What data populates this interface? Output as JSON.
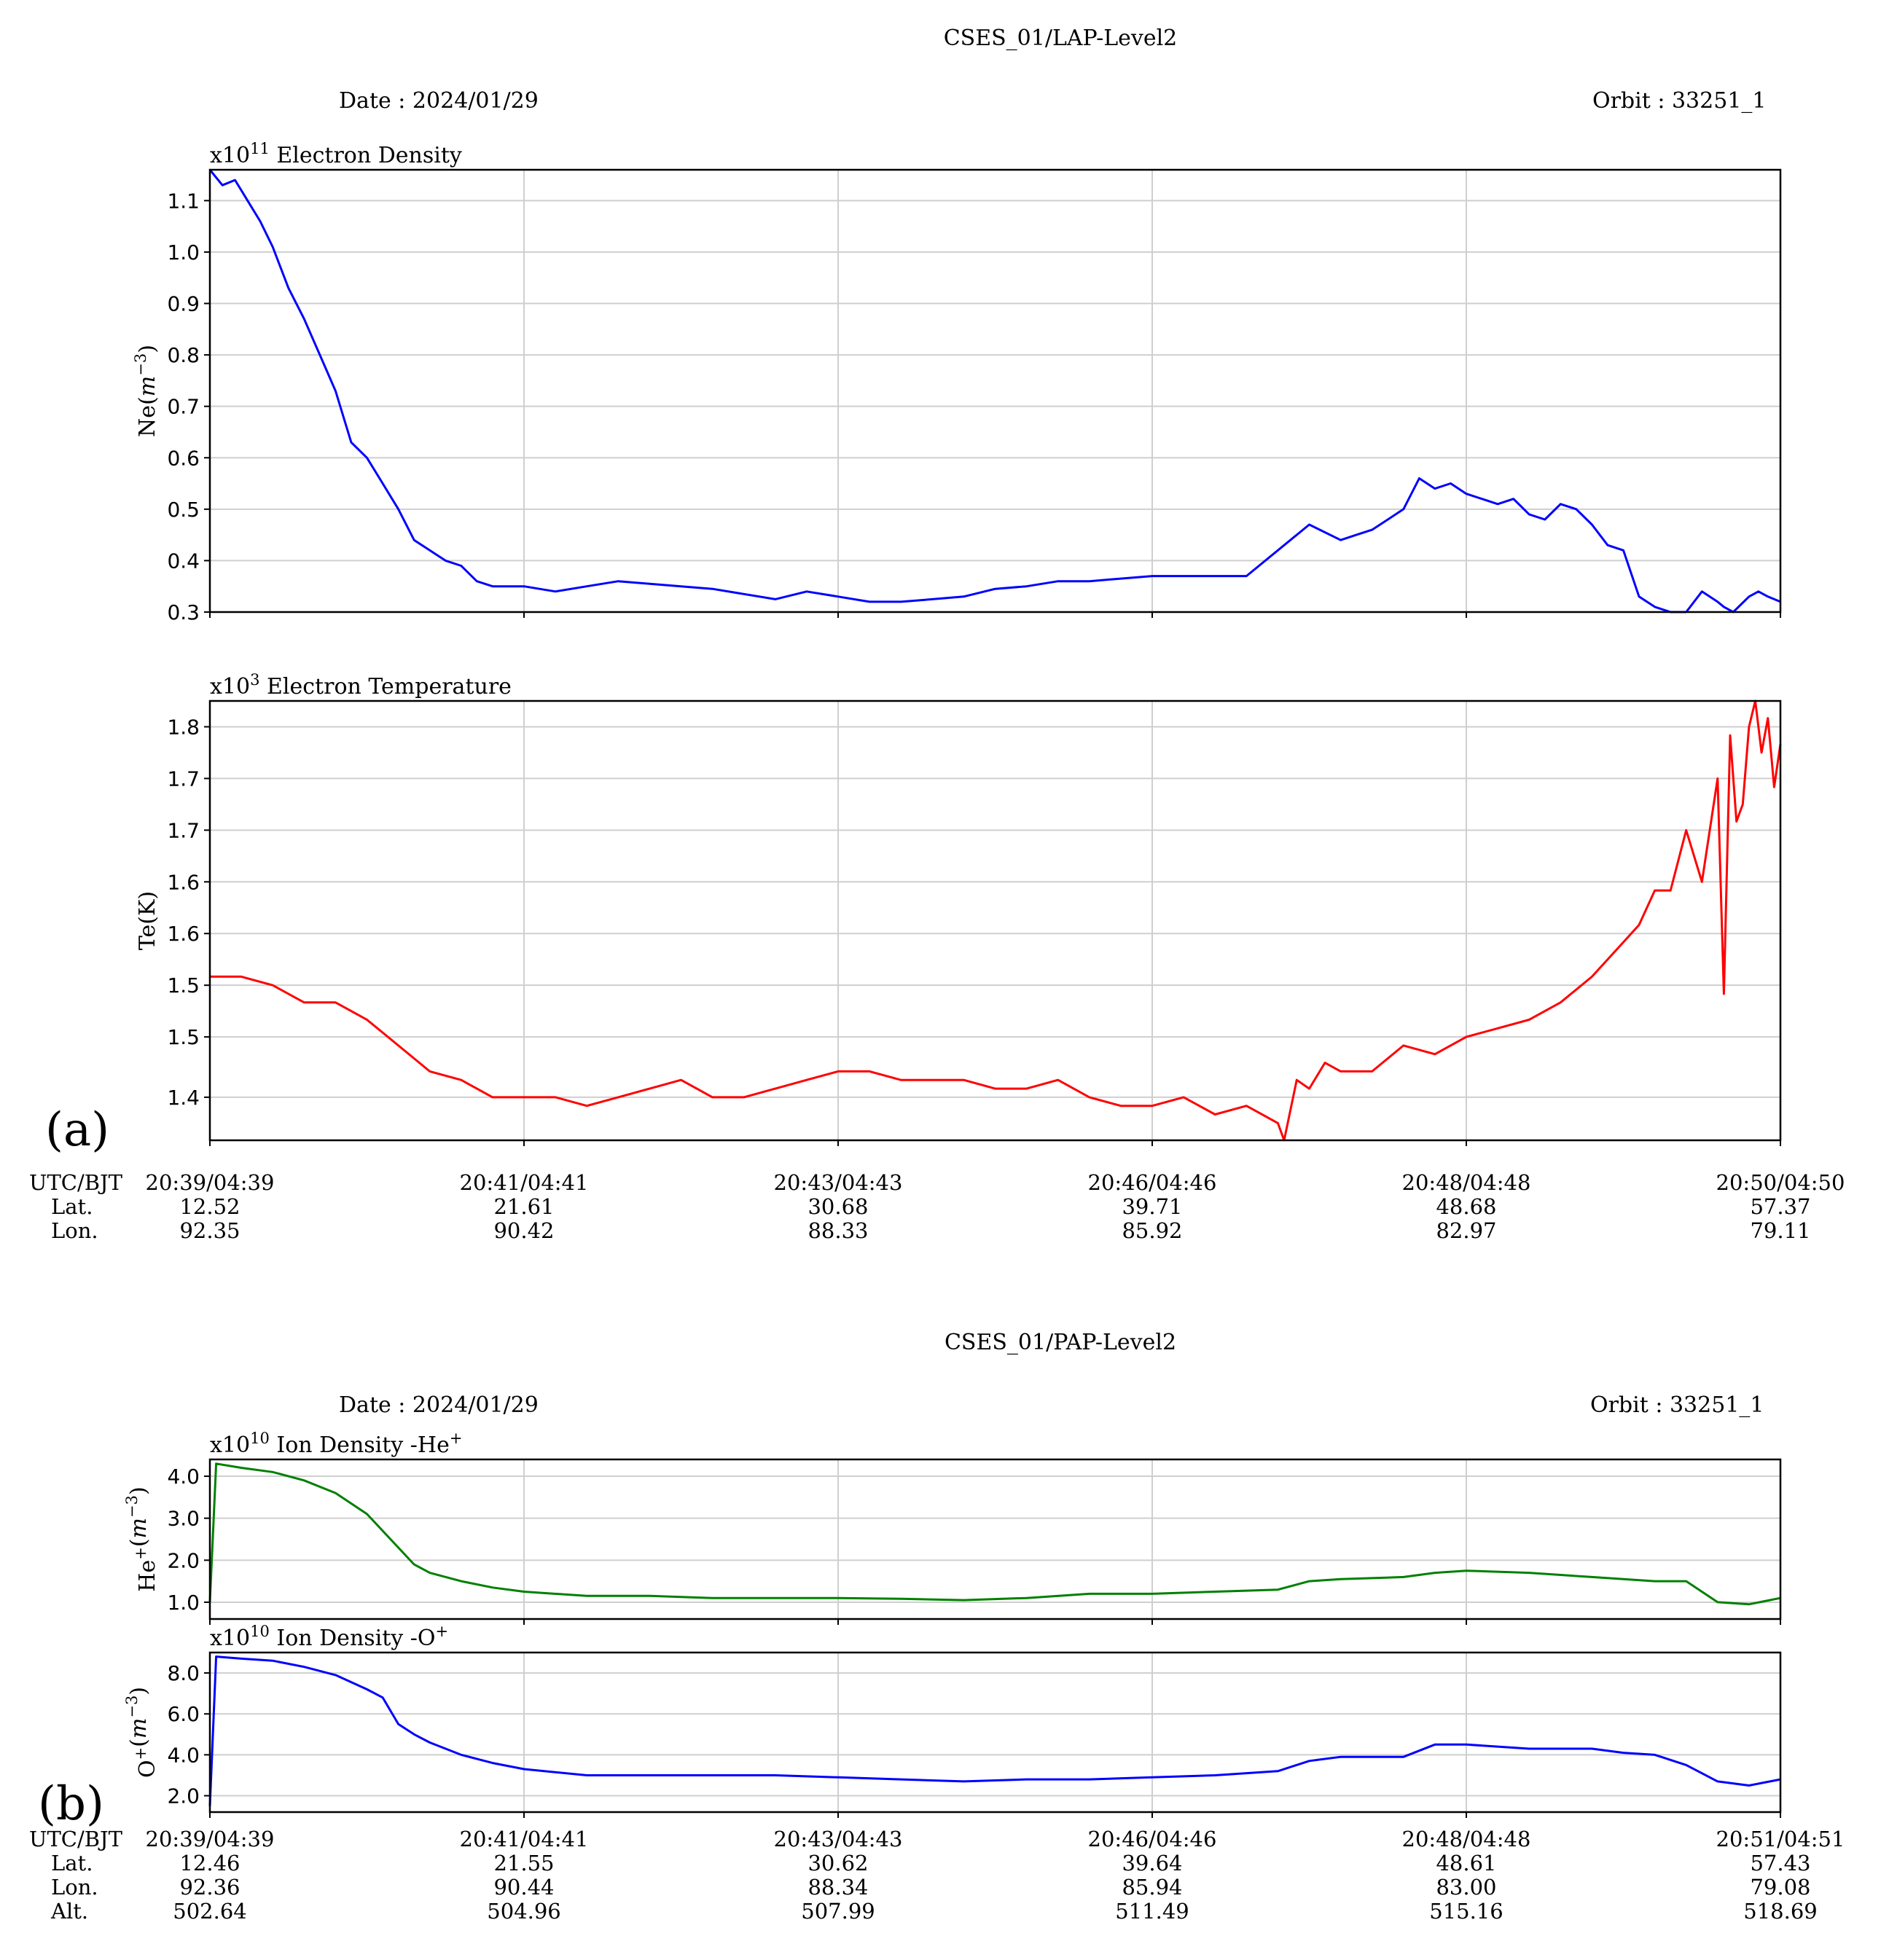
{
  "figure_a": {
    "title": "CSES_01/LAP-Level2",
    "date": "Date : 2024/01/29",
    "orbit": "Orbit : 33251_1",
    "panel_label": "(a)",
    "row_labels": [
      "UTC/BJT",
      "Lat.",
      "Lon."
    ],
    "ticks": [
      {
        "time": "20:39/04:39",
        "lat": "12.52",
        "lon": "92.35"
      },
      {
        "time": "20:41/04:41",
        "lat": "21.61",
        "lon": "90.42"
      },
      {
        "time": "20:43/04:43",
        "lat": "30.68",
        "lon": "88.33"
      },
      {
        "time": "20:46/04:46",
        "lat": "39.71",
        "lon": "85.92"
      },
      {
        "time": "20:48/04:48",
        "lat": "48.68",
        "lon": "82.97"
      },
      {
        "time": "20:50/04:50",
        "lat": "57.37",
        "lon": "79.11"
      }
    ]
  },
  "figure_b": {
    "title": "CSES_01/PAP-Level2",
    "date": "Date : 2024/01/29",
    "orbit": "Orbit : 33251_1",
    "panel_label": "(b)",
    "row_labels": [
      "UTC/BJT",
      "Lat.",
      "Lon.",
      "Alt."
    ],
    "ticks": [
      {
        "time": "20:39/04:39",
        "lat": "12.46",
        "lon": "92.36",
        "alt": "502.64"
      },
      {
        "time": "20:41/04:41",
        "lat": "21.55",
        "lon": "90.44",
        "alt": "504.96"
      },
      {
        "time": "20:43/04:43",
        "lat": "30.62",
        "lon": "88.34",
        "alt": "507.99"
      },
      {
        "time": "20:46/04:46",
        "lat": "39.64",
        "lon": "85.94",
        "alt": "511.49"
      },
      {
        "time": "20:48/04:48",
        "lat": "48.61",
        "lon": "83.00",
        "alt": "515.16"
      },
      {
        "time": "20:51/04:51",
        "lat": "57.43",
        "lon": "79.08",
        "alt": "518.69"
      }
    ]
  },
  "chart_data": [
    {
      "type": "line",
      "title_prefix": "x10",
      "title_exp": "11",
      "title": " Electron Density",
      "ylabel": "Ne",
      "yunit_base": "m",
      "yunit_exp": "−3",
      "ylim": [
        0.3,
        1.16
      ],
      "yticks": [
        "0.3",
        "0.4",
        "0.5",
        "0.6",
        "0.7",
        "0.8",
        "0.9",
        "1.0",
        "1.1"
      ],
      "ytick_values": [
        0.3,
        0.4,
        0.5,
        0.6,
        0.7,
        0.8,
        0.9,
        1.0,
        1.1
      ],
      "xlim": [
        0,
        5
      ],
      "grid": true,
      "color": "#0000ff",
      "x": [
        0,
        0.04,
        0.08,
        0.12,
        0.16,
        0.2,
        0.25,
        0.3,
        0.35,
        0.4,
        0.45,
        0.5,
        0.55,
        0.6,
        0.65,
        0.7,
        0.75,
        0.8,
        0.85,
        0.9,
        0.95,
        1.0,
        1.1,
        1.2,
        1.3,
        1.4,
        1.5,
        1.6,
        1.7,
        1.8,
        1.9,
        2.0,
        2.1,
        2.2,
        2.3,
        2.4,
        2.5,
        2.6,
        2.7,
        2.8,
        2.9,
        3.0,
        3.1,
        3.2,
        3.3,
        3.4,
        3.5,
        3.6,
        3.65,
        3.7,
        3.75,
        3.8,
        3.85,
        3.9,
        3.95,
        4.0,
        4.05,
        4.1,
        4.15,
        4.2,
        4.25,
        4.3,
        4.35,
        4.4,
        4.45,
        4.5,
        4.55,
        4.6,
        4.65,
        4.7,
        4.75,
        4.8,
        4.82,
        4.85,
        4.9,
        4.93,
        4.96,
        5.0
      ],
      "y": [
        1.16,
        1.13,
        1.14,
        1.1,
        1.06,
        1.01,
        0.93,
        0.87,
        0.8,
        0.73,
        0.63,
        0.6,
        0.55,
        0.5,
        0.44,
        0.42,
        0.4,
        0.39,
        0.36,
        0.35,
        0.35,
        0.35,
        0.34,
        0.35,
        0.36,
        0.355,
        0.35,
        0.345,
        0.335,
        0.325,
        0.34,
        0.33,
        0.32,
        0.32,
        0.325,
        0.33,
        0.345,
        0.35,
        0.36,
        0.36,
        0.365,
        0.37,
        0.37,
        0.37,
        0.37,
        0.42,
        0.47,
        0.44,
        0.45,
        0.46,
        0.48,
        0.5,
        0.56,
        0.54,
        0.55,
        0.53,
        0.52,
        0.51,
        0.52,
        0.49,
        0.48,
        0.51,
        0.5,
        0.47,
        0.43,
        0.42,
        0.33,
        0.31,
        0.3,
        0.3,
        0.34,
        0.32,
        0.31,
        0.3,
        0.33,
        0.34,
        0.33,
        0.32
      ]
    },
    {
      "type": "line",
      "title_prefix": "x10",
      "title_exp": "3",
      "title": " Electron Temperature",
      "ylabel": "Te(K)",
      "ylim": [
        1.31,
        1.82
      ],
      "yticks": [
        "1.4",
        "1.5",
        "1.5",
        "1.6",
        "1.6",
        "1.7",
        "1.7",
        "1.8"
      ],
      "ytick_values": [
        1.36,
        1.43,
        1.49,
        1.55,
        1.61,
        1.67,
        1.73,
        1.79
      ],
      "xlim": [
        0,
        5
      ],
      "grid": true,
      "color": "#ff0000",
      "x": [
        0,
        0.1,
        0.2,
        0.3,
        0.4,
        0.5,
        0.6,
        0.7,
        0.8,
        0.9,
        1.0,
        1.1,
        1.2,
        1.3,
        1.4,
        1.5,
        1.6,
        1.7,
        1.8,
        1.9,
        2.0,
        2.1,
        2.2,
        2.3,
        2.4,
        2.5,
        2.6,
        2.7,
        2.8,
        2.9,
        3.0,
        3.1,
        3.2,
        3.3,
        3.4,
        3.42,
        3.46,
        3.5,
        3.55,
        3.6,
        3.7,
        3.8,
        3.9,
        4.0,
        4.1,
        4.2,
        4.3,
        4.4,
        4.5,
        4.55,
        4.6,
        4.65,
        4.7,
        4.75,
        4.8,
        4.82,
        4.84,
        4.86,
        4.88,
        4.9,
        4.92,
        4.94,
        4.96,
        4.98,
        5.0
      ],
      "y": [
        1.5,
        1.5,
        1.49,
        1.47,
        1.47,
        1.45,
        1.42,
        1.39,
        1.38,
        1.36,
        1.36,
        1.36,
        1.35,
        1.36,
        1.37,
        1.38,
        1.36,
        1.36,
        1.37,
        1.38,
        1.39,
        1.39,
        1.38,
        1.38,
        1.38,
        1.37,
        1.37,
        1.38,
        1.36,
        1.35,
        1.35,
        1.36,
        1.34,
        1.35,
        1.33,
        1.31,
        1.38,
        1.37,
        1.4,
        1.39,
        1.39,
        1.42,
        1.41,
        1.43,
        1.44,
        1.45,
        1.47,
        1.5,
        1.54,
        1.56,
        1.6,
        1.6,
        1.67,
        1.61,
        1.73,
        1.48,
        1.78,
        1.68,
        1.7,
        1.79,
        1.82,
        1.76,
        1.8,
        1.72,
        1.77
      ]
    },
    {
      "type": "line",
      "title_prefix": "x10",
      "title_exp": "10",
      "title": " Ion Density -He",
      "title_sup": "+",
      "ylabel": "He",
      "ylabel_sup": "+",
      "yunit_base": "m",
      "yunit_exp": "−3",
      "ylim": [
        0.6,
        4.4
      ],
      "yticks": [
        "1.0",
        "2.0",
        "3.0",
        "4.0"
      ],
      "ytick_values": [
        1.0,
        2.0,
        3.0,
        4.0
      ],
      "xlim": [
        0,
        5
      ],
      "grid": true,
      "color": "#008000",
      "x": [
        0,
        0.02,
        0.1,
        0.2,
        0.3,
        0.4,
        0.5,
        0.6,
        0.65,
        0.7,
        0.8,
        0.9,
        1.0,
        1.2,
        1.4,
        1.6,
        1.8,
        2.0,
        2.2,
        2.4,
        2.6,
        2.8,
        3.0,
        3.2,
        3.4,
        3.5,
        3.6,
        3.8,
        3.9,
        4.0,
        4.2,
        4.4,
        4.5,
        4.6,
        4.7,
        4.8,
        4.9,
        5.0
      ],
      "y": [
        1.0,
        4.3,
        4.2,
        4.1,
        3.9,
        3.6,
        3.1,
        2.3,
        1.9,
        1.7,
        1.5,
        1.35,
        1.25,
        1.15,
        1.15,
        1.1,
        1.1,
        1.1,
        1.08,
        1.05,
        1.1,
        1.2,
        1.2,
        1.25,
        1.3,
        1.5,
        1.55,
        1.6,
        1.7,
        1.75,
        1.7,
        1.6,
        1.55,
        1.5,
        1.5,
        1.0,
        0.95,
        1.1
      ]
    },
    {
      "type": "line",
      "title_prefix": "x10",
      "title_exp": "10",
      "title": " Ion Density -O",
      "title_sup": "+",
      "ylabel": "O",
      "ylabel_sup": "+",
      "yunit_base": "m",
      "yunit_exp": "−3",
      "ylim": [
        1.2,
        9.0
      ],
      "yticks": [
        "2.0",
        "4.0",
        "6.0",
        "8.0"
      ],
      "ytick_values": [
        2.0,
        4.0,
        6.0,
        8.0
      ],
      "xlim": [
        0,
        5
      ],
      "grid": true,
      "color": "#0000ff",
      "x": [
        0,
        0.02,
        0.1,
        0.2,
        0.3,
        0.4,
        0.5,
        0.55,
        0.6,
        0.65,
        0.7,
        0.8,
        0.9,
        1.0,
        1.2,
        1.4,
        1.6,
        1.8,
        2.0,
        2.2,
        2.4,
        2.6,
        2.8,
        3.0,
        3.2,
        3.4,
        3.5,
        3.6,
        3.8,
        3.9,
        4.0,
        4.2,
        4.4,
        4.5,
        4.6,
        4.7,
        4.8,
        4.9,
        5.0
      ],
      "y": [
        1.5,
        8.8,
        8.7,
        8.6,
        8.3,
        7.9,
        7.2,
        6.8,
        5.5,
        5.0,
        4.6,
        4.0,
        3.6,
        3.3,
        3.0,
        3.0,
        3.0,
        3.0,
        2.9,
        2.8,
        2.7,
        2.8,
        2.8,
        2.9,
        3.0,
        3.2,
        3.7,
        3.9,
        3.9,
        4.5,
        4.5,
        4.3,
        4.3,
        4.1,
        4.0,
        3.5,
        2.7,
        2.5,
        2.8
      ]
    }
  ]
}
